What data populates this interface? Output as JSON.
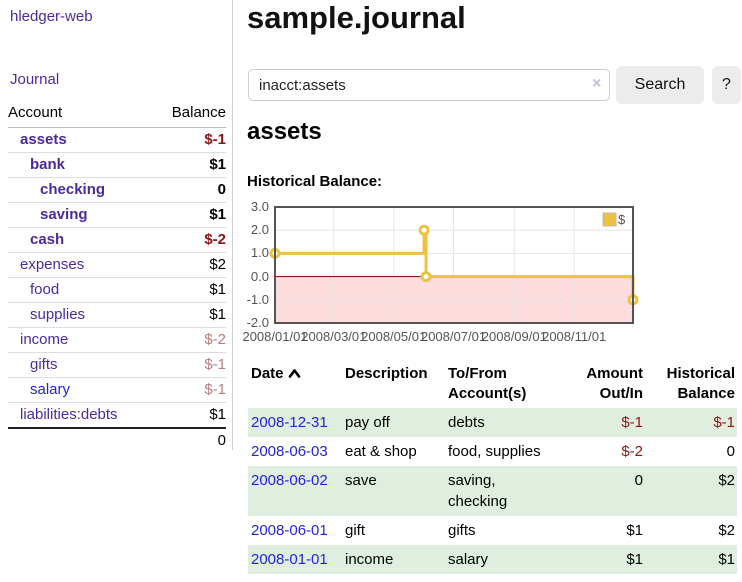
{
  "app": {
    "title": "hledger-web",
    "nav_journal": "Journal"
  },
  "sidebar": {
    "col_account": "Account",
    "col_balance": "Balance",
    "accounts": [
      {
        "name": "assets",
        "balance": "$-1",
        "level": 1,
        "bold": true
      },
      {
        "name": "bank",
        "balance": "$1",
        "level": 2,
        "bold": true
      },
      {
        "name": "checking",
        "balance": "0",
        "level": 3,
        "bold": true
      },
      {
        "name": "saving",
        "balance": "$1",
        "level": 3,
        "bold": true
      },
      {
        "name": "cash",
        "balance": "$-2",
        "level": 2,
        "bold": true
      },
      {
        "name": "expenses",
        "balance": "$2",
        "level": 1,
        "bold": false
      },
      {
        "name": "food",
        "balance": "$1",
        "level": 2,
        "bold": false
      },
      {
        "name": "supplies",
        "balance": "$1",
        "level": 2,
        "bold": false
      },
      {
        "name": "income",
        "balance": "$-2",
        "level": 1,
        "bold": false
      },
      {
        "name": "gifts",
        "balance": "$-1",
        "level": 2,
        "bold": false
      },
      {
        "name": "salary",
        "balance": "$-1",
        "level": 2,
        "bold": false
      },
      {
        "name": "liabilities:debts",
        "balance": "$1",
        "level": 1,
        "bold": false
      }
    ],
    "total": "0"
  },
  "header": {
    "title": "sample.journal"
  },
  "search": {
    "value": "inacct:assets",
    "clear_icon": "×",
    "search_button": "Search",
    "help_button": "?"
  },
  "account_page": {
    "heading": "assets",
    "chart_label": "Historical Balance:"
  },
  "chart_data": {
    "type": "line",
    "step": true,
    "title": "Historical Balance",
    "legend": [
      {
        "label": "$",
        "color": "#edc240"
      }
    ],
    "legend_position": "top-right",
    "grid": true,
    "xrange": [
      "2008-01-01",
      "2008-12-31"
    ],
    "ylim": [
      -2,
      3
    ],
    "yticks": [
      "3.0",
      "2.0",
      "1.0",
      "0.0",
      "-1.0",
      "-2.0"
    ],
    "xticks": [
      {
        "date": "2008-01-01",
        "label": "2008/01/01"
      },
      {
        "date": "2008-03-01",
        "label": "2008/03/01"
      },
      {
        "date": "2008-05-01",
        "label": "2008/05/01"
      },
      {
        "date": "2008-07-01",
        "label": "2008/07/01"
      },
      {
        "date": "2008-09-01",
        "label": "2008/09/01"
      },
      {
        "date": "2008-11-01",
        "label": "2008/11/01"
      }
    ],
    "series": [
      {
        "name": "$",
        "points": [
          [
            "2008-01-01",
            1
          ],
          [
            "2008-06-01",
            2
          ],
          [
            "2008-06-03",
            0
          ],
          [
            "2008-12-31",
            -1
          ]
        ]
      }
    ],
    "negative_zone_below": 0
  },
  "register": {
    "headers": {
      "date": "Date",
      "description": "Description",
      "accounts": "To/From Account(s)",
      "amount": "Amount Out/In",
      "balance": "Historical Balance"
    },
    "sort_icon": "chevron-up",
    "rows": [
      {
        "date": "2008-12-31",
        "description": "pay off",
        "accounts": "debts",
        "amount": "$-1",
        "balance": "$-1"
      },
      {
        "date": "2008-06-03",
        "description": "eat & shop",
        "accounts": "food, supplies",
        "amount": "$-2",
        "balance": "0"
      },
      {
        "date": "2008-06-02",
        "description": "save",
        "accounts": "saving, checking",
        "amount": "0",
        "balance": "$2"
      },
      {
        "date": "2008-06-01",
        "description": "gift",
        "accounts": "gifts",
        "amount": "$1",
        "balance": "$2"
      },
      {
        "date": "2008-01-01",
        "description": "income",
        "accounts": "salary",
        "amount": "$1",
        "balance": "$1"
      }
    ]
  },
  "colors": {
    "accent": "#edc240",
    "negative_zone": "#fcdcdc",
    "zero_line": "#7a0000",
    "negative_strong": "#8f1414",
    "negative_soft": "#b97c7c",
    "link_purple": "#4b2aa0",
    "link_blue": "#2323dd",
    "row_stripe_green": "#e0eee0",
    "grid_line": "#e6e6e6",
    "chart_border": "#545454"
  }
}
